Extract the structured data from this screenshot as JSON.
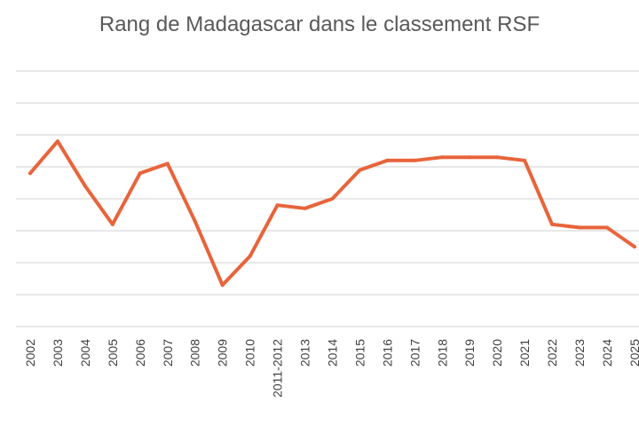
{
  "chart_data": {
    "type": "line",
    "title": "Rang de Madagascar dans le classement RSF",
    "xlabel": "",
    "ylabel": "",
    "categories": [
      "2002",
      "2003",
      "2004",
      "2005",
      "2006",
      "2007",
      "2008",
      "2009",
      "2010",
      "2011-2012",
      "2013",
      "2014",
      "2015",
      "2016",
      "2017",
      "2018",
      "2019",
      "2020",
      "2021",
      "2022",
      "2023",
      "2024",
      "2025"
    ],
    "series": [
      {
        "values": [
          4.8,
          5.8,
          4.4,
          3.2,
          4.8,
          5.1,
          3.3,
          1.3,
          2.2,
          3.8,
          3.7,
          4.0,
          4.9,
          5.2,
          5.2,
          5.3,
          5.3,
          5.3,
          5.2,
          3.2,
          3.1,
          3.1,
          2.5
        ]
      }
    ],
    "ylim": [
      0,
      8
    ],
    "y_gridlines": 8,
    "grid": true,
    "colors": {
      "line": "#e8643b",
      "grid": "#d9d9d9",
      "title": "#595959",
      "labels": "#404040"
    }
  }
}
